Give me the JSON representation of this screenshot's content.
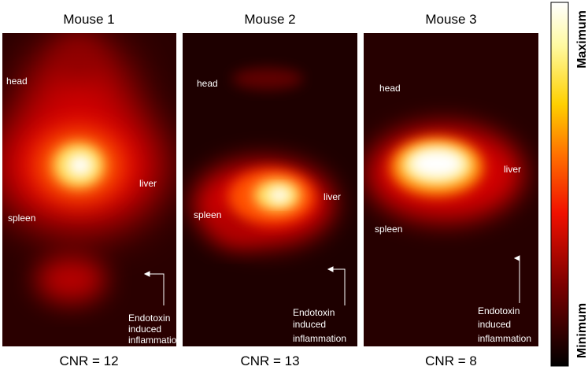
{
  "panels": [
    {
      "title": "Mouse 1",
      "head": "head",
      "liver": "liver",
      "spleen": "spleen",
      "annotation": [
        "Endotoxin",
        "induced",
        "inflammation"
      ],
      "cnr": "CNR = 12"
    },
    {
      "title": "Mouse 2",
      "head": "head",
      "liver": "liver",
      "spleen": "spleen",
      "annotation": [
        "Endotoxin",
        "induced",
        "inflammation"
      ],
      "cnr": "CNR = 13"
    },
    {
      "title": "Mouse 3",
      "head": "head",
      "liver": "liver",
      "spleen": "spleen",
      "annotation": [
        "Endotoxin",
        "induced",
        "inflammation"
      ],
      "cnr": "CNR = 8"
    }
  ],
  "colorbar": {
    "max": "Maximum",
    "min": "Minimum"
  }
}
